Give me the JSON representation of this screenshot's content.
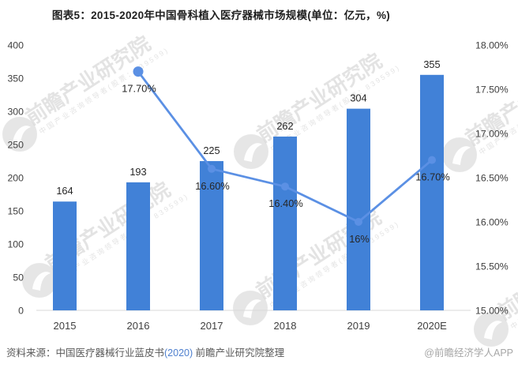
{
  "title": "图表5：2015-2020年中国骨科植入医疗器械市场规模(单位：亿元，%)",
  "chart_data": {
    "type": "bar",
    "subtype": "combo-bar-line-dual-axis",
    "title": "图表5：2015-2020年中国骨科植入医疗器械市场规模(单位：亿元，%)",
    "categories": [
      "2015",
      "2016",
      "2017",
      "2018",
      "2019",
      "2020E"
    ],
    "series": [
      {
        "type": "bar",
        "axis": "left",
        "values": [
          164,
          193,
          225,
          262,
          304,
          355
        ],
        "labels": [
          "164",
          "193",
          "225",
          "262",
          "304",
          "355"
        ],
        "color": "#4181d7"
      },
      {
        "type": "line",
        "axis": "right",
        "values": [
          null,
          17.7,
          16.6,
          16.4,
          16.0,
          16.7
        ],
        "labels": [
          null,
          "17.70%",
          "16.60%",
          "16.40%",
          "16%",
          "16.70%"
        ],
        "color": "#5b90e4"
      }
    ],
    "left_axis": {
      "min": 0,
      "max": 400,
      "step": 50,
      "ticks": [
        "400",
        "350",
        "300",
        "250",
        "200",
        "150",
        "100",
        "50",
        "0"
      ]
    },
    "right_axis": {
      "min": 15,
      "max": 18,
      "step": 0.5,
      "ticks": [
        "18.00%",
        "17.50%",
        "17.00%",
        "16.50%",
        "16.00%",
        "15.50%",
        "15.00%"
      ]
    },
    "grid": false,
    "legend": "none"
  },
  "footer": {
    "source_text": "资料来源：中国医疗器械行业蓝皮书",
    "source_year": "(2020)",
    "source_suffix": " 前瞻产业研究院整理",
    "credit": "@前瞻经济学人APP"
  },
  "watermark": {
    "text": "前瞻产业研究院",
    "subtext": "中国产业咨询领导者(股票：839599)"
  },
  "colors": {
    "bar": "#4181d7",
    "line": "#5b90e4",
    "baseline": "#d9d9d9",
    "axis_text": "#404040",
    "data_label": "#262626",
    "source": "#595959",
    "source_year": "#4e7fce",
    "credit": "#a6a6a6",
    "watermark": "#d2d2d2"
  }
}
